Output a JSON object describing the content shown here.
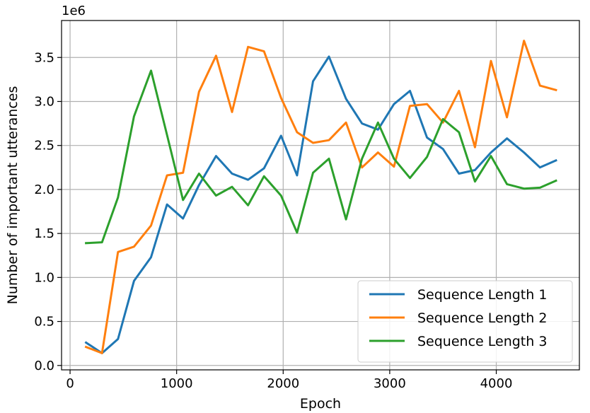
{
  "chart_data": {
    "type": "line",
    "xlabel": "Epoch",
    "ylabel": "Number of important utterances",
    "offset_text": "1e6",
    "xlim": [
      -80,
      4780
    ],
    "ylim": [
      -0.05,
      3.92
    ],
    "x_ticks": [
      0,
      1000,
      2000,
      3000,
      4000
    ],
    "x_tick_labels": [
      "0",
      "1000",
      "2000",
      "3000",
      "4000"
    ],
    "y_ticks": [
      0.0,
      0.5,
      1.0,
      1.5,
      2.0,
      2.5,
      3.0,
      3.5
    ],
    "y_tick_labels": [
      "0.0",
      "0.5",
      "1.0",
      "1.5",
      "2.0",
      "2.5",
      "3.0",
      "3.5"
    ],
    "grid": true,
    "legend_position": "lower-right",
    "x": [
      150,
      300,
      450,
      600,
      760,
      910,
      1060,
      1210,
      1370,
      1520,
      1670,
      1820,
      1980,
      2130,
      2280,
      2430,
      2590,
      2740,
      2890,
      3040,
      3190,
      3350,
      3500,
      3650,
      3800,
      3950,
      4100,
      4260,
      4410,
      4560
    ],
    "series": [
      {
        "name": "Sequence Length 1",
        "color": "#1f77b4",
        "values": [
          0.26,
          0.14,
          0.3,
          0.96,
          1.23,
          1.83,
          1.67,
          2.05,
          2.38,
          2.18,
          2.11,
          2.24,
          2.61,
          2.16,
          3.23,
          3.51,
          3.03,
          2.75,
          2.68,
          2.97,
          3.12,
          2.59,
          2.46,
          2.18,
          2.22,
          2.42,
          2.58,
          2.42,
          2.25,
          2.33
        ]
      },
      {
        "name": "Sequence Length 2",
        "color": "#ff7f0e",
        "values": [
          0.21,
          0.14,
          1.29,
          1.35,
          1.59,
          2.16,
          2.19,
          3.11,
          3.52,
          2.88,
          3.62,
          3.57,
          3.04,
          2.65,
          2.53,
          2.56,
          2.76,
          2.25,
          2.42,
          2.26,
          2.95,
          2.97,
          2.76,
          3.12,
          2.48,
          3.46,
          2.82,
          3.69,
          3.18,
          3.13
        ]
      },
      {
        "name": "Sequence Length 3",
        "color": "#2ca02c",
        "values": [
          1.39,
          1.4,
          1.91,
          2.83,
          3.35,
          2.62,
          1.88,
          2.18,
          1.93,
          2.03,
          1.82,
          2.15,
          1.93,
          1.51,
          2.19,
          2.35,
          1.66,
          2.35,
          2.76,
          2.35,
          2.13,
          2.37,
          2.8,
          2.65,
          2.09,
          2.38,
          2.06,
          2.01,
          2.02,
          2.1
        ]
      }
    ]
  }
}
